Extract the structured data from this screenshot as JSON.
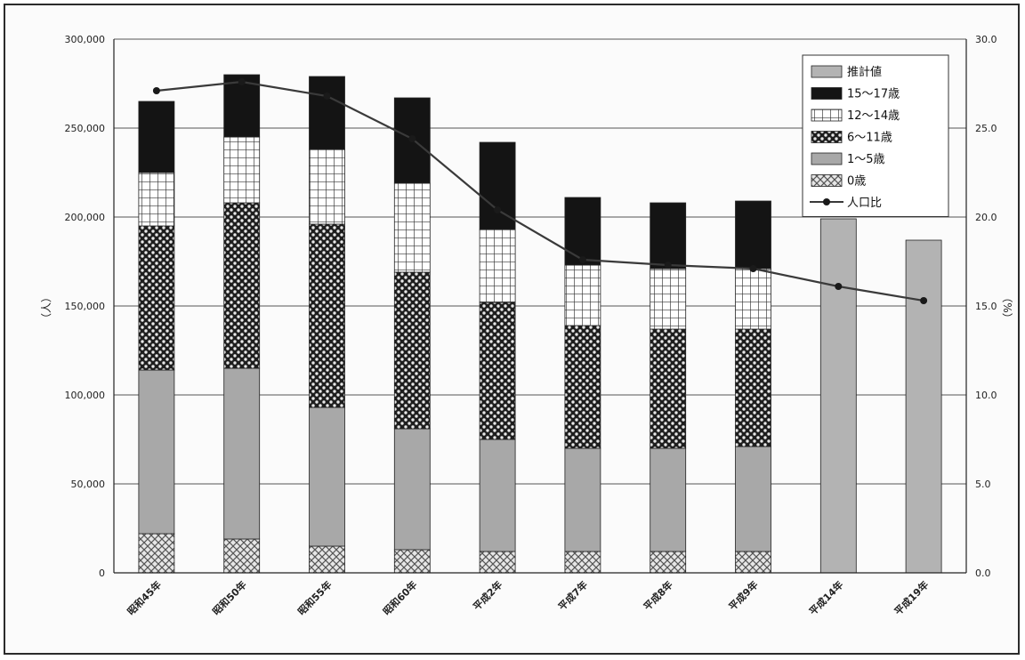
{
  "chart_data": {
    "type": "bar",
    "stacked": true,
    "title": "",
    "categories": [
      "昭和45年",
      "昭和50年",
      "昭和55年",
      "昭和60年",
      "平成2年",
      "平成7年",
      "平成8年",
      "平成9年",
      "平成14年",
      "平成19年"
    ],
    "left_axis": {
      "label": "（人）",
      "ylim": [
        0,
        300000
      ],
      "ticks": [
        "0",
        "50,000",
        "100,000",
        "150,000",
        "200,000",
        "250,000",
        "300,000"
      ]
    },
    "right_axis": {
      "label": "（%）",
      "ylim": [
        0,
        30
      ],
      "ticks": [
        "0.0",
        "5.0",
        "10.0",
        "15.0",
        "20.0",
        "25.0",
        "30.0"
      ]
    },
    "grid": true,
    "legend_position": "top-right",
    "series": [
      {
        "name": "0歳",
        "color": "#9a9a9a",
        "pattern": "crosshatch",
        "values": [
          22000,
          19000,
          15000,
          13000,
          12000,
          12000,
          12000,
          12000,
          null,
          null
        ]
      },
      {
        "name": "1～5歳",
        "color": "#a8a8a8",
        "pattern": "solid",
        "values": [
          92000,
          96000,
          78000,
          68000,
          63000,
          58000,
          58000,
          59000,
          null,
          null
        ]
      },
      {
        "name": "6～11歳",
        "color": "#3a3a3a",
        "pattern": "checker",
        "values": [
          81000,
          93000,
          103000,
          88000,
          77000,
          69000,
          67000,
          66000,
          null,
          null
        ]
      },
      {
        "name": "12～14歳",
        "color": "#ffffff",
        "pattern": "grid",
        "values": [
          30000,
          37000,
          42000,
          50000,
          41000,
          34000,
          34000,
          34000,
          null,
          null
        ]
      },
      {
        "name": "15～17歳",
        "color": "#141414",
        "pattern": "solid",
        "values": [
          40000,
          35000,
          41000,
          48000,
          49000,
          38000,
          37000,
          38000,
          null,
          null
        ]
      },
      {
        "name": "推計値",
        "color": "#b3b3b3",
        "pattern": "solid",
        "values": [
          null,
          null,
          null,
          null,
          null,
          null,
          null,
          null,
          199000,
          187000
        ]
      }
    ],
    "line": {
      "name": "人口比",
      "color": "#3a3a3a",
      "axis": "right",
      "values": [
        27.1,
        27.6,
        26.8,
        24.4,
        20.4,
        17.6,
        17.3,
        17.1,
        16.1,
        15.3
      ]
    }
  }
}
